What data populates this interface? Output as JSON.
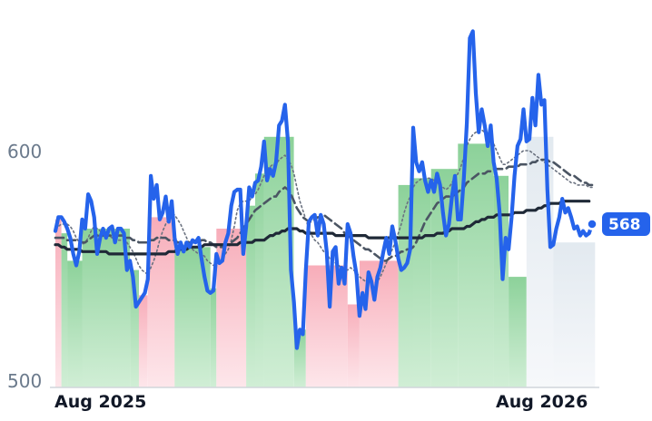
{
  "chart_data": {
    "type": "line",
    "y_ticks": [
      "600",
      "500"
    ],
    "y_tick_values": [
      600,
      500
    ],
    "x_ticks": [
      "Aug 2025",
      "Aug 2026"
    ],
    "ylim": [
      500,
      665
    ],
    "last_value_label": "568",
    "colors": {
      "price": "#2563eb",
      "ma_long": "#1f2937",
      "ma_mid": "#4b5563",
      "ma_short": "#6b7280",
      "band_up": "#86cf94",
      "band_down": "#f7a8b5",
      "band_neutral": "#eef1f6"
    },
    "series": [
      {
        "key": "price",
        "values": [
          565,
          571,
          571,
          569,
          566,
          562,
          555,
          550,
          556,
          570,
          566,
          581,
          578,
          571,
          555,
          562,
          566,
          562,
          566,
          567,
          560,
          566,
          566,
          564,
          548,
          552,
          545,
          532,
          534,
          536,
          538,
          544,
          589,
          579,
          585,
          570,
          573,
          580,
          569,
          578,
          562,
          555,
          560,
          556,
          560,
          558,
          561,
          560,
          562,
          553,
          545,
          539,
          538,
          539,
          555,
          551,
          552,
          560,
          564,
          576,
          582,
          583,
          583,
          555,
          567,
          584,
          580,
          586,
          587,
          593,
          604,
          587,
          592,
          589,
          595,
          611,
          613,
          620,
          604,
          548,
          534,
          514,
          522,
          520,
          548,
          569,
          571,
          572,
          563,
          572,
          568,
          556,
          532,
          556,
          558,
          542,
          549,
          542,
          568,
          564,
          554,
          546,
          528,
          538,
          531,
          547,
          543,
          535,
          545,
          549,
          556,
          562,
          555,
          567,
          561,
          553,
          548,
          549,
          551,
          557,
          610,
          595,
          591,
          595,
          587,
          582,
          587,
          582,
          590,
          585,
          573,
          563,
          568,
          580,
          589,
          570,
          570,
          588,
          612,
          649,
          652,
          625,
          608,
          618,
          611,
          602,
          611,
          595,
          588,
          573,
          544,
          562,
          557,
          571,
          589,
          602,
          605,
          618,
          604,
          605,
          623,
          611,
          633,
          620,
          622,
          583,
          558,
          559,
          566,
          571,
          579,
          573,
          575,
          571,
          566,
          567,
          563,
          565,
          563,
          564,
          568
        ]
      },
      {
        "key": "ma_long",
        "values": [
          559,
          559,
          558,
          558,
          557,
          557,
          557,
          557,
          557,
          556,
          556,
          556,
          556,
          556,
          556,
          556,
          556,
          556,
          555,
          555,
          555,
          555,
          555,
          555,
          555,
          555,
          555,
          555,
          555,
          555,
          555,
          555,
          555,
          555,
          555,
          555,
          555,
          555,
          556,
          556,
          556,
          557,
          557,
          557,
          557,
          558,
          558,
          558,
          558,
          558,
          559,
          559,
          559,
          559,
          559,
          559,
          559,
          559,
          559,
          559,
          559,
          559,
          560,
          560,
          560,
          560,
          560,
          561,
          561,
          561,
          561,
          562,
          563,
          563,
          564,
          564,
          565,
          565,
          566,
          566,
          566,
          566,
          565,
          565,
          564,
          564,
          564,
          564,
          564,
          564,
          564,
          564,
          564,
          564,
          563,
          563,
          563,
          563,
          563,
          563,
          563,
          563,
          563,
          563,
          563,
          562,
          562,
          562,
          562,
          562,
          562,
          562,
          562,
          562,
          562,
          562,
          562,
          562,
          562,
          562,
          562,
          562,
          562,
          562,
          563,
          563,
          563,
          563,
          564,
          564,
          564,
          565,
          565,
          566,
          566,
          566,
          566,
          566,
          567,
          567,
          568,
          569,
          569,
          570,
          570,
          571,
          571,
          571,
          572,
          572,
          572,
          572,
          572,
          572,
          573,
          573,
          573,
          573,
          574,
          574,
          574,
          574,
          575,
          575,
          576,
          576,
          577,
          577,
          577,
          577,
          578,
          578,
          578,
          578,
          578,
          578,
          578,
          578,
          578,
          578
        ]
      },
      {
        "key": "ma_mid",
        "values": [
          562,
          562,
          562,
          562,
          561,
          561,
          561,
          561,
          561,
          560,
          560,
          561,
          562,
          563,
          563,
          563,
          563,
          563,
          563,
          563,
          563,
          563,
          563,
          563,
          562,
          562,
          561,
          561,
          560,
          560,
          560,
          560,
          561,
          561,
          562,
          562,
          562,
          562,
          561,
          561,
          561,
          560,
          560,
          560,
          560,
          560,
          560,
          560,
          560,
          561,
          561,
          560,
          560,
          559,
          558,
          558,
          558,
          559,
          559,
          560,
          561,
          562,
          564,
          566,
          568,
          570,
          572,
          574,
          575,
          576,
          577,
          578,
          579,
          580,
          580,
          582,
          583,
          584,
          583,
          581,
          578,
          575,
          573,
          571,
          570,
          569,
          569,
          570,
          571,
          571,
          572,
          571,
          570,
          569,
          568,
          567,
          566,
          564,
          563,
          562,
          561,
          560,
          559,
          558,
          557,
          557,
          556,
          555,
          554,
          553,
          552,
          552,
          553,
          554,
          554,
          555,
          556,
          556,
          557,
          557,
          558,
          560,
          563,
          566,
          569,
          571,
          573,
          575,
          577,
          578,
          579,
          580,
          580,
          580,
          581,
          582,
          583,
          584,
          586,
          587,
          588,
          589,
          590,
          590,
          590,
          591,
          591,
          592,
          592,
          592,
          592,
          592,
          593,
          593,
          593,
          593,
          594,
          594,
          594,
          594,
          595,
          595,
          596,
          596,
          596,
          596,
          595,
          595,
          594,
          593,
          592,
          591,
          590,
          589,
          589,
          588,
          587,
          586,
          586,
          585,
          585
        ]
      },
      {
        "key": "ma_short",
        "values": [
          566,
          567,
          568,
          568,
          568,
          567,
          565,
          562,
          560,
          559,
          560,
          562,
          565,
          567,
          566,
          565,
          564,
          564,
          563,
          562,
          561,
          561,
          561,
          561,
          560,
          558,
          556,
          553,
          550,
          548,
          547,
          546,
          549,
          552,
          556,
          561,
          565,
          568,
          570,
          572,
          572,
          570,
          568,
          565,
          562,
          559,
          557,
          556,
          555,
          555,
          554,
          552,
          551,
          550,
          551,
          551,
          553,
          555,
          557,
          561,
          567,
          574,
          577,
          578,
          578,
          578,
          580,
          581,
          583,
          586,
          589,
          592,
          593,
          594,
          594,
          596,
          597,
          598,
          596,
          594,
          590,
          584,
          578,
          574,
          570,
          566,
          563,
          561,
          560,
          558,
          556,
          555,
          553,
          552,
          551,
          550,
          549,
          548,
          548,
          549,
          548,
          547,
          545,
          544,
          543,
          543,
          542,
          542,
          543,
          545,
          548,
          551,
          554,
          557,
          560,
          564,
          568,
          573,
          577,
          580,
          584,
          586,
          587,
          588,
          588,
          588,
          588,
          587,
          586,
          585,
          584,
          583,
          584,
          586,
          588,
          590,
          593,
          597,
          602,
          605,
          607,
          608,
          609,
          609,
          608,
          607,
          605,
          603,
          600,
          597,
          594,
          594,
          595,
          596,
          597,
          598,
          599,
          600,
          600,
          600,
          599,
          598,
          597,
          596,
          595,
          594,
          593,
          592,
          591,
          590,
          589,
          588,
          587,
          586,
          586,
          585,
          585,
          585,
          585,
          584,
          584
        ]
      }
    ],
    "bands": [
      {
        "from": 0,
        "to": 2,
        "type": "down",
        "value": 570
      },
      {
        "from": 2,
        "to": 4,
        "type": "up",
        "value": 564
      },
      {
        "from": 4,
        "to": 9,
        "type": "up",
        "value": 552
      },
      {
        "from": 9,
        "to": 25,
        "type": "up",
        "value": 566
      },
      {
        "from": 25,
        "to": 28,
        "type": "up",
        "value": 548
      },
      {
        "from": 28,
        "to": 31,
        "type": "down",
        "value": 537
      },
      {
        "from": 31,
        "to": 40,
        "type": "down",
        "value": 571
      },
      {
        "from": 40,
        "to": 52,
        "type": "up",
        "value": 558
      },
      {
        "from": 52,
        "to": 54,
        "type": "up",
        "value": 540
      },
      {
        "from": 54,
        "to": 64,
        "type": "down",
        "value": 566
      },
      {
        "from": 64,
        "to": 67,
        "type": "up",
        "value": 576
      },
      {
        "from": 67,
        "to": 70,
        "type": "up",
        "value": 590
      },
      {
        "from": 70,
        "to": 80,
        "type": "up",
        "value": 606
      },
      {
        "from": 80,
        "to": 84,
        "type": "up",
        "value": 522
      },
      {
        "from": 84,
        "to": 98,
        "type": "down",
        "value": 550
      },
      {
        "from": 98,
        "to": 102,
        "type": "down",
        "value": 533
      },
      {
        "from": 102,
        "to": 115,
        "type": "down",
        "value": 552
      },
      {
        "from": 115,
        "to": 120,
        "type": "up",
        "value": 585
      },
      {
        "from": 120,
        "to": 126,
        "type": "up",
        "value": 588
      },
      {
        "from": 126,
        "to": 135,
        "type": "up",
        "value": 592
      },
      {
        "from": 135,
        "to": 147,
        "type": "up",
        "value": 603
      },
      {
        "from": 147,
        "to": 152,
        "type": "up",
        "value": 589
      },
      {
        "from": 152,
        "to": 158,
        "type": "up",
        "value": 545
      },
      {
        "from": 158,
        "to": 167,
        "type": "neutral",
        "value": 606
      },
      {
        "from": 167,
        "to": 181,
        "type": "neutral",
        "value": 560
      }
    ]
  }
}
